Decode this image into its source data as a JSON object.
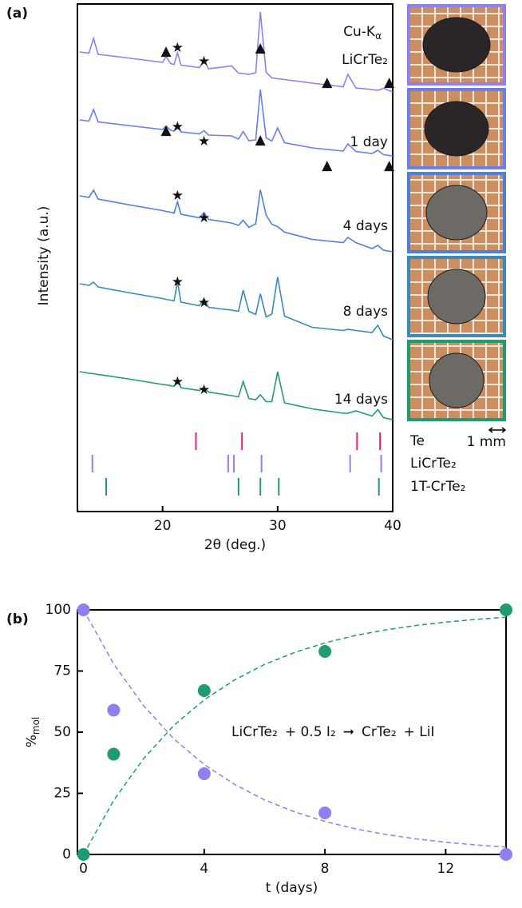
{
  "chart_data": [
    {
      "type": "line",
      "label": "(a)",
      "ylabel": "Intensity (a.u.)",
      "xlabel": "2θ (deg.)",
      "annotation": {
        "main": "Cu-K",
        "sub": "α"
      },
      "scale_bar": "1 mm",
      "xlim": [
        12.6,
        40
      ],
      "xticks": [
        20,
        30,
        40
      ],
      "ylim": [
        0,
        127
      ],
      "x": [
        12.8,
        13.6,
        14.0,
        14.4,
        17,
        20,
        20.3,
        20.7,
        21.0,
        21.3,
        21.6,
        23.2,
        23.6,
        24.0,
        26.0,
        26.6,
        27.0,
        27.5,
        28.1,
        28.5,
        29.0,
        29.5,
        30.0,
        30.6,
        33,
        35.7,
        36.1,
        36.8,
        38.2,
        38.7,
        39.2,
        40
      ],
      "series": [
        {
          "name": "LiCrTe₂",
          "color": "#8f7ff0",
          "values": [
            115.0,
            114.7,
            118.4,
            114.4,
            113.5,
            112.4,
            113.9,
            112.1,
            111.9,
            114.8,
            111.7,
            111.1,
            112.9,
            110.8,
            111.5,
            109.7,
            109.6,
            109.4,
            109.8,
            125.0,
            109.9,
            108.5,
            108.3,
            108.1,
            107.2,
            106.3,
            109.4,
            106.0,
            105.6,
            105.4,
            105.9,
            105.0
          ]
        },
        {
          "name": "1 day",
          "color": "#6b7fe8",
          "values": [
            98.0,
            97.7,
            100.6,
            97.5,
            96.6,
            95.6,
            96.5,
            95.4,
            95.2,
            97.1,
            95.0,
            94.5,
            95.3,
            94.2,
            94.0,
            93.2,
            95.1,
            92.8,
            93.0,
            105.6,
            93.5,
            92.7,
            96.0,
            92.3,
            91.0,
            90.2,
            92.0,
            90.1,
            89.6,
            90.4,
            89.3,
            89.0
          ]
        },
        {
          "name": "4 days",
          "color": "#4e7fd9",
          "values": [
            79.0,
            78.6,
            80.4,
            78.2,
            76.8,
            75.3,
            75.1,
            74.9,
            74.7,
            77.5,
            74.4,
            73.5,
            74.8,
            73.1,
            72.2,
            71.6,
            72.9,
            71.1,
            72.0,
            80.5,
            74.2,
            71.9,
            71.3,
            69.9,
            68.1,
            67.3,
            68.6,
            67.3,
            65.8,
            66.6,
            65.4,
            65.0
          ]
        },
        {
          "name": "8 days",
          "color": "#3a8ab8",
          "values": [
            57.0,
            56.6,
            57.4,
            56.2,
            54.8,
            53.3,
            53.1,
            52.9,
            52.7,
            57.5,
            52.4,
            51.5,
            53.3,
            51.1,
            50.4,
            50.1,
            55.4,
            50.1,
            49.3,
            54.5,
            48.7,
            49.4,
            58.7,
            48.9,
            46.1,
            45.3,
            45.6,
            45.3,
            44.8,
            46.6,
            43.9,
            43.0
          ]
        },
        {
          "name": "14 days",
          "color": "#1f9a72",
          "values": [
            35.0,
            34.6,
            34.5,
            34.3,
            33.2,
            31.8,
            31.7,
            31.5,
            31.3,
            33.2,
            31.0,
            30.3,
            31.1,
            29.9,
            29.0,
            28.7,
            32.5,
            28.3,
            28.0,
            29.2,
            27.5,
            27.5,
            35.0,
            27.2,
            25.7,
            24.6,
            24.6,
            25.2,
            23.9,
            25.5,
            23.5,
            23.0
          ]
        }
      ],
      "markers": [
        {
          "symbol": "▲",
          "x": [
            20.3,
            28.5,
            34.3,
            39.7,
            20.3,
            28.5,
            34.3,
            39.7
          ],
          "y": [
            115.2,
            116.0,
            107.4,
            107.4,
            95.4,
            93.0,
            86.6,
            86.6
          ]
        },
        {
          "symbol": "★",
          "x": [
            21.3,
            23.6,
            21.3,
            23.6,
            21.3,
            23.6,
            21.3,
            23.6,
            21.3,
            23.6
          ],
          "y": [
            116.0,
            112.6,
            96.2,
            92.6,
            79.0,
            73.4,
            57.4,
            52.2,
            32.4,
            30.4
          ]
        }
      ],
      "reference_ticks": [
        {
          "name": "Te",
          "color": "#e0207a",
          "y": 17.6,
          "positions": [
            22.9,
            26.9,
            36.9,
            38.9
          ]
        },
        {
          "name": "LiCrTe₂",
          "color": "#8f7ff0",
          "y": 12.0,
          "positions": [
            13.9,
            25.7,
            26.2,
            28.6,
            36.3,
            39.0
          ]
        },
        {
          "name": "1T-CrTe₂",
          "color": "#1f9a72",
          "y": 6.2,
          "positions": [
            15.1,
            26.6,
            28.5,
            30.1,
            38.8
          ]
        }
      ]
    },
    {
      "type": "scatter",
      "label": "(b)",
      "xlabel": "t (days)",
      "ylabel": {
        "main": "%",
        "sub": "mol"
      },
      "xlim": [
        -0.2,
        14
      ],
      "xticks": [
        0,
        4,
        8,
        12
      ],
      "ylim": [
        0,
        100
      ],
      "yticks": [
        0,
        25,
        50,
        75,
        100
      ],
      "series": [
        {
          "color": "#8f7ff0",
          "x": [
            0,
            1,
            4,
            8,
            14
          ],
          "values": [
            100,
            59,
            33,
            17,
            0
          ]
        },
        {
          "color": "#1f9a72",
          "x": [
            0,
            1,
            4,
            8,
            14
          ],
          "values": [
            0,
            41,
            67,
            83,
            100
          ]
        }
      ],
      "fits": [
        {
          "color": "#8f7ff0",
          "x": [
            0,
            1,
            2,
            3,
            4,
            5,
            6,
            7,
            8,
            9,
            10,
            11,
            12,
            13,
            14
          ],
          "values": [
            100,
            77.9,
            60.7,
            47.2,
            36.8,
            28.7,
            22.3,
            17.4,
            13.5,
            10.5,
            8.2,
            6.4,
            5.0,
            3.9,
            3.0
          ]
        },
        {
          "color": "#1f9a72",
          "x": [
            0,
            1,
            2,
            3,
            4,
            5,
            6,
            7,
            8,
            9,
            10,
            11,
            12,
            13,
            14
          ],
          "values": [
            0,
            22.1,
            39.3,
            52.8,
            63.2,
            71.3,
            77.7,
            82.6,
            86.5,
            89.5,
            91.8,
            93.6,
            95.0,
            96.1,
            97.0
          ]
        }
      ],
      "equation": [
        {
          "text": "LiCrTe₂",
          "color": "#8f7ff0"
        },
        {
          "text": "+ 0.5 I₂",
          "color": "#111111"
        },
        {
          "text": "➞",
          "color": "#111111"
        },
        {
          "text": "CrTe₂",
          "color": "#1f9a72"
        },
        {
          "text": "+ LiI",
          "color": "#111111"
        }
      ]
    }
  ]
}
